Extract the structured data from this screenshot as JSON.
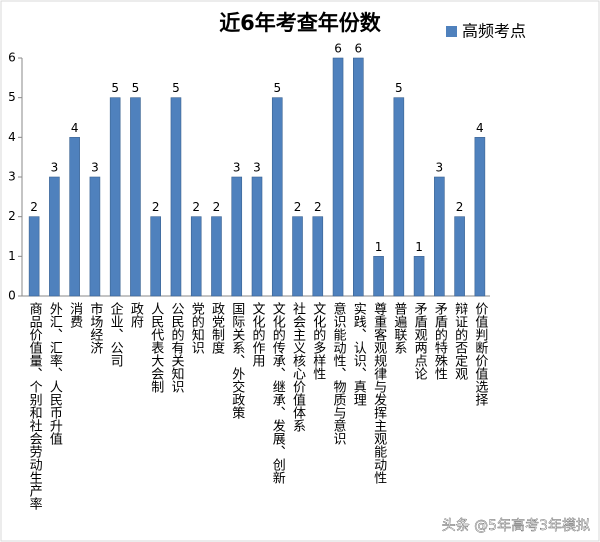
{
  "chart_data": {
    "type": "bar",
    "title": "近6年考查年份数",
    "categories": [
      "商品价值量、个别和社会劳动生产率",
      "外汇、汇率、人民币升值",
      "消费",
      "市场经济",
      "企业、公司",
      "政府",
      "人民代表大会制",
      "公民的有关知识",
      "党的知识",
      "政党制度",
      "国际关系、外交政策",
      "文化的作用",
      "文化的传承、继承、发展、创新",
      "社会主义核心价值体系",
      "文化的多样性",
      "意识能动性、物质与意识",
      "实践、认识、真理",
      "尊重客观规律与发挥主观能动性",
      "普遍联系",
      "矛盾观两点论",
      "矛盾的特殊性",
      "辩证的否定观",
      "价值判断价值选择"
    ],
    "series": [
      {
        "name": "高频考点",
        "color": "#4f81bd",
        "values": [
          2,
          3,
          4,
          3,
          5,
          5,
          2,
          5,
          2,
          2,
          3,
          3,
          5,
          2,
          2,
          6,
          6,
          1,
          5,
          1,
          3,
          2,
          4
        ]
      }
    ],
    "ylim": [
      0,
      6
    ],
    "yticks": [
      0,
      1,
      2,
      3,
      4,
      5,
      6
    ],
    "grid": false,
    "legend": "top-right",
    "watermark": "头条 @5年高考3年模拟"
  }
}
